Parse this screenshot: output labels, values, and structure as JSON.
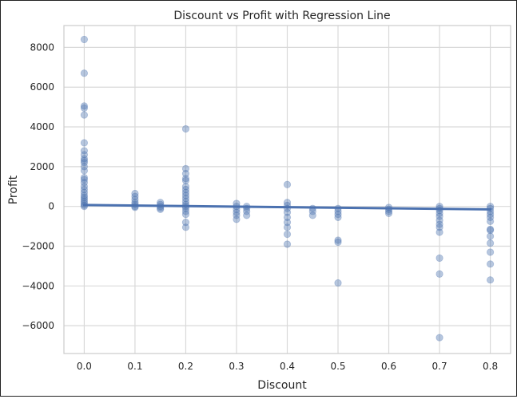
{
  "chart_data": {
    "type": "scatter",
    "title": "Discount vs Profit with Regression Line",
    "xlabel": "Discount",
    "ylabel": "Profit",
    "xlim": [
      -0.04,
      0.84
    ],
    "ylim": [
      -7400,
      9100
    ],
    "x_ticks": [
      0.0,
      0.1,
      0.2,
      0.3,
      0.4,
      0.5,
      0.6,
      0.7,
      0.8
    ],
    "x_tick_labels": [
      "0.0",
      "0.1",
      "0.2",
      "0.3",
      "0.4",
      "0.5",
      "0.6",
      "0.7",
      "0.8"
    ],
    "y_ticks": [
      -6000,
      -4000,
      -2000,
      0,
      2000,
      4000,
      6000,
      8000
    ],
    "y_tick_labels": [
      "−6000",
      "−4000",
      "−2000",
      "0",
      "2000",
      "4000",
      "6000",
      "8000"
    ],
    "grid": true,
    "colors": {
      "points": "#4c72b0",
      "line": "#4c72b0",
      "grid": "#d9d9d9",
      "frame": "#cccccc"
    },
    "points": [
      {
        "x": 0.0,
        "y": 8400
      },
      {
        "x": 0.0,
        "y": 6700
      },
      {
        "x": 0.0,
        "y": 5050
      },
      {
        "x": 0.0,
        "y": 4950
      },
      {
        "x": 0.0,
        "y": 4600
      },
      {
        "x": 0.0,
        "y": 3200
      },
      {
        "x": 0.0,
        "y": 2800
      },
      {
        "x": 0.0,
        "y": 2600
      },
      {
        "x": 0.0,
        "y": 2400
      },
      {
        "x": 0.0,
        "y": 2300
      },
      {
        "x": 0.0,
        "y": 2200
      },
      {
        "x": 0.0,
        "y": 2000
      },
      {
        "x": 0.0,
        "y": 1800
      },
      {
        "x": 0.0,
        "y": 1450
      },
      {
        "x": 0.0,
        "y": 1350
      },
      {
        "x": 0.0,
        "y": 1200
      },
      {
        "x": 0.0,
        "y": 1000
      },
      {
        "x": 0.0,
        "y": 850
      },
      {
        "x": 0.0,
        "y": 700
      },
      {
        "x": 0.0,
        "y": 550
      },
      {
        "x": 0.0,
        "y": 450
      },
      {
        "x": 0.0,
        "y": 350
      },
      {
        "x": 0.0,
        "y": 250
      },
      {
        "x": 0.0,
        "y": 150
      },
      {
        "x": 0.0,
        "y": 60
      },
      {
        "x": 0.0,
        "y": 0
      },
      {
        "x": 0.1,
        "y": 650
      },
      {
        "x": 0.1,
        "y": 500
      },
      {
        "x": 0.1,
        "y": 350
      },
      {
        "x": 0.1,
        "y": 200
      },
      {
        "x": 0.1,
        "y": 100
      },
      {
        "x": 0.1,
        "y": 0
      },
      {
        "x": 0.1,
        "y": -50
      },
      {
        "x": 0.15,
        "y": 200
      },
      {
        "x": 0.15,
        "y": 100
      },
      {
        "x": 0.15,
        "y": 0
      },
      {
        "x": 0.15,
        "y": -80
      },
      {
        "x": 0.15,
        "y": -150
      },
      {
        "x": 0.2,
        "y": 3900
      },
      {
        "x": 0.2,
        "y": 1900
      },
      {
        "x": 0.2,
        "y": 1650
      },
      {
        "x": 0.2,
        "y": 1400
      },
      {
        "x": 0.2,
        "y": 1300
      },
      {
        "x": 0.2,
        "y": 1000
      },
      {
        "x": 0.2,
        "y": 850
      },
      {
        "x": 0.2,
        "y": 700
      },
      {
        "x": 0.2,
        "y": 550
      },
      {
        "x": 0.2,
        "y": 400
      },
      {
        "x": 0.2,
        "y": 250
      },
      {
        "x": 0.2,
        "y": 100
      },
      {
        "x": 0.2,
        "y": 0
      },
      {
        "x": 0.2,
        "y": -100
      },
      {
        "x": 0.2,
        "y": -250
      },
      {
        "x": 0.2,
        "y": -400
      },
      {
        "x": 0.2,
        "y": -800
      },
      {
        "x": 0.2,
        "y": -1050
      },
      {
        "x": 0.3,
        "y": 150
      },
      {
        "x": 0.3,
        "y": 0
      },
      {
        "x": 0.3,
        "y": -150
      },
      {
        "x": 0.3,
        "y": -300
      },
      {
        "x": 0.3,
        "y": -450
      },
      {
        "x": 0.3,
        "y": -650
      },
      {
        "x": 0.32,
        "y": 0
      },
      {
        "x": 0.32,
        "y": -100
      },
      {
        "x": 0.32,
        "y": -250
      },
      {
        "x": 0.32,
        "y": -450
      },
      {
        "x": 0.4,
        "y": 1100
      },
      {
        "x": 0.4,
        "y": 200
      },
      {
        "x": 0.4,
        "y": 50
      },
      {
        "x": 0.4,
        "y": -100
      },
      {
        "x": 0.4,
        "y": -300
      },
      {
        "x": 0.4,
        "y": -550
      },
      {
        "x": 0.4,
        "y": -800
      },
      {
        "x": 0.4,
        "y": -1050
      },
      {
        "x": 0.4,
        "y": -1400
      },
      {
        "x": 0.4,
        "y": -1900
      },
      {
        "x": 0.45,
        "y": -100
      },
      {
        "x": 0.45,
        "y": -250
      },
      {
        "x": 0.45,
        "y": -450
      },
      {
        "x": 0.5,
        "y": -100
      },
      {
        "x": 0.5,
        "y": -250
      },
      {
        "x": 0.5,
        "y": -400
      },
      {
        "x": 0.5,
        "y": -550
      },
      {
        "x": 0.5,
        "y": -1700
      },
      {
        "x": 0.5,
        "y": -1800
      },
      {
        "x": 0.5,
        "y": -3850
      },
      {
        "x": 0.6,
        "y": -50
      },
      {
        "x": 0.6,
        "y": -150
      },
      {
        "x": 0.6,
        "y": -250
      },
      {
        "x": 0.6,
        "y": -350
      },
      {
        "x": 0.7,
        "y": 0
      },
      {
        "x": 0.7,
        "y": -100
      },
      {
        "x": 0.7,
        "y": -200
      },
      {
        "x": 0.7,
        "y": -350
      },
      {
        "x": 0.7,
        "y": -500
      },
      {
        "x": 0.7,
        "y": -700
      },
      {
        "x": 0.7,
        "y": -900
      },
      {
        "x": 0.7,
        "y": -1050
      },
      {
        "x": 0.7,
        "y": -1300
      },
      {
        "x": 0.7,
        "y": -2600
      },
      {
        "x": 0.7,
        "y": -3400
      },
      {
        "x": 0.7,
        "y": -6600
      },
      {
        "x": 0.8,
        "y": 0
      },
      {
        "x": 0.8,
        "y": -100
      },
      {
        "x": 0.8,
        "y": -250
      },
      {
        "x": 0.8,
        "y": -400
      },
      {
        "x": 0.8,
        "y": -550
      },
      {
        "x": 0.8,
        "y": -750
      },
      {
        "x": 0.8,
        "y": -1150
      },
      {
        "x": 0.8,
        "y": -1200
      },
      {
        "x": 0.8,
        "y": -1500
      },
      {
        "x": 0.8,
        "y": -1850
      },
      {
        "x": 0.8,
        "y": -2300
      },
      {
        "x": 0.8,
        "y": -2900
      },
      {
        "x": 0.8,
        "y": -3700
      }
    ],
    "regression": {
      "x": [
        0.0,
        0.8
      ],
      "y": [
        70,
        -150
      ]
    }
  }
}
